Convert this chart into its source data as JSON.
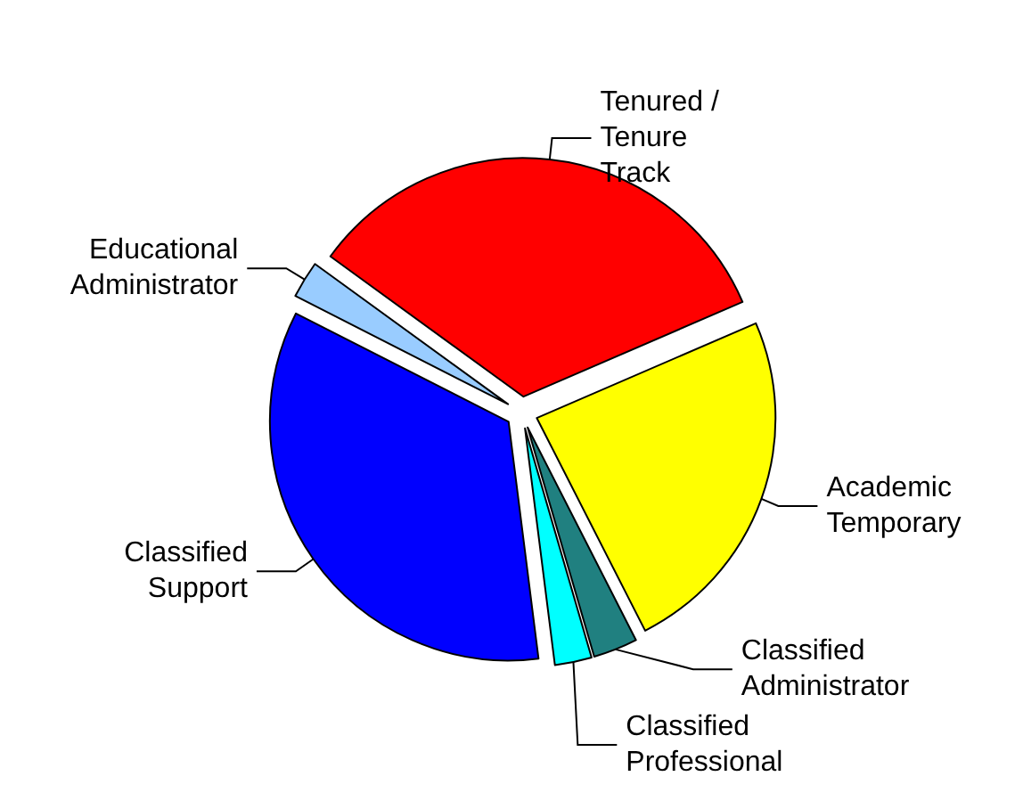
{
  "chart_data": {
    "type": "pie",
    "categories": [
      "Tenured /\nTenure\nTrack",
      "Academic\nTemporary",
      "Classified\nAdministrator",
      "Classified\nProfessional",
      "Classified\nSupport",
      "Educational\nAdministrator"
    ],
    "values": [
      33.5,
      24,
      3,
      2.5,
      34.5,
      2.5
    ],
    "colors": [
      "#ff0000",
      "#ffff00",
      "#208080",
      "#00ffff",
      "#0000ff",
      "#99ccff"
    ],
    "legend": false
  }
}
